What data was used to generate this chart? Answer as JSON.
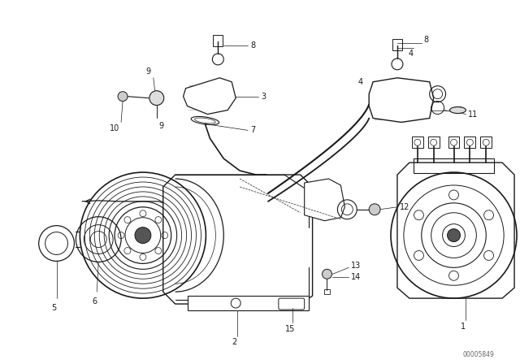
{
  "bg_color": "#ffffff",
  "lc": "#1a1a1a",
  "fig_width": 6.4,
  "fig_height": 4.48,
  "dpi": 100,
  "watermark": "00005849",
  "font_size": 7.0
}
